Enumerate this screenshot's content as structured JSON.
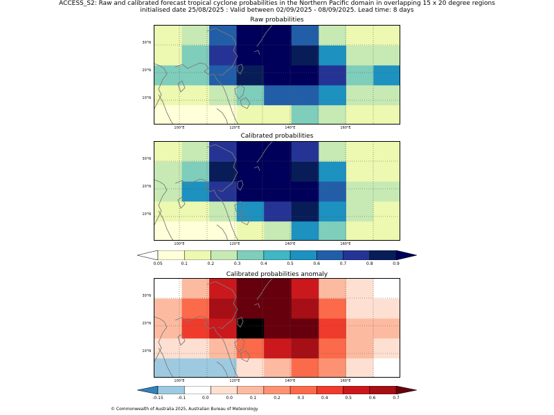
{
  "title_line1": "ACCESS_S2: Raw and calibrated forecast tropical cyclone probabilities in the Northern Pacific domain in overlapping 15 x 20 degree regions",
  "title_line2": "initialised date 25/08/2025 :  Valid between 02/09/2025 - 08/09/2025. Lead time: 8 days",
  "lat_labels": [
    "30°N",
    "20°N",
    "10°N"
  ],
  "lon_labels": [
    "100°E",
    "120°E",
    "140°E",
    "160°E"
  ],
  "panels": [
    {
      "title": "Raw probabilities",
      "scale": "prob",
      "grid": [
        [
          0.1,
          0.2,
          0.6,
          0.9,
          0.9,
          0.6,
          0.2,
          0.15,
          0.15
        ],
        [
          0.15,
          0.3,
          0.7,
          0.9,
          0.9,
          0.8,
          0.5,
          0.2,
          0.2
        ],
        [
          0.3,
          0.3,
          0.6,
          0.8,
          0.9,
          0.9,
          0.7,
          0.3,
          0.5
        ],
        [
          0.15,
          0.15,
          0.2,
          0.3,
          0.6,
          0.6,
          0.5,
          0.2,
          0.2
        ],
        [
          0.05,
          0.05,
          0.05,
          0.1,
          0.15,
          0.3,
          0.2,
          0.15,
          0.1
        ]
      ]
    },
    {
      "title": "Calibrated probabilities",
      "scale": "prob",
      "grid": [
        [
          0.1,
          0.2,
          0.7,
          0.95,
          0.95,
          0.7,
          0.2,
          0.15,
          0.1
        ],
        [
          0.2,
          0.3,
          0.8,
          0.95,
          0.95,
          0.8,
          0.5,
          0.15,
          0.15
        ],
        [
          0.2,
          0.5,
          0.7,
          0.9,
          0.95,
          0.95,
          0.6,
          0.2,
          0.2
        ],
        [
          0.15,
          0.15,
          0.2,
          0.5,
          0.7,
          0.8,
          0.5,
          0.2,
          0.15
        ],
        [
          0.05,
          0.05,
          0.05,
          0.1,
          0.2,
          0.5,
          0.3,
          0.15,
          0.1
        ]
      ]
    },
    {
      "title": "Calibrated probabilities anomaly",
      "scale": "anom",
      "grid": [
        [
          -0.1,
          0.05,
          0.45,
          0.75,
          0.75,
          0.45,
          0.05,
          0.0,
          -0.1
        ],
        [
          0.05,
          0.2,
          0.55,
          0.75,
          0.75,
          0.55,
          0.25,
          0.0,
          0.0
        ],
        [
          0.05,
          0.35,
          0.45,
          0.65,
          0.75,
          0.75,
          0.35,
          0.05,
          0.05
        ],
        [
          0.0,
          0.0,
          0.05,
          0.25,
          0.45,
          0.55,
          0.25,
          0.05,
          0.0
        ],
        [
          -0.15,
          -0.15,
          -0.15,
          0.0,
          0.05,
          0.25,
          0.15,
          0.0,
          -0.1
        ]
      ]
    }
  ],
  "prob_colorbar": {
    "ticks": [
      "0.05",
      "0.1",
      "0.2",
      "0.3",
      "0.4",
      "0.5",
      "0.6",
      "0.7",
      "0.8",
      "0.9"
    ],
    "colors": [
      "#ffffd9",
      "#edf8b1",
      "#c7e9b4",
      "#7fcdbb",
      "#41b6c4",
      "#1d91c0",
      "#225ea8",
      "#253494",
      "#081d58"
    ],
    "under": "#ffffff",
    "over": "#00005a"
  },
  "anom_colorbar": {
    "ticks": [
      "-0.15",
      "-0.1",
      "0.0",
      "0.0",
      "0.1",
      "0.2",
      "0.3",
      "0.4",
      "0.5",
      "0.6",
      "0.7"
    ],
    "colors": [
      "#9ecae1",
      "#ffffff",
      "#fee0d2",
      "#fcbba1",
      "#fc9272",
      "#fb6a4a",
      "#ef3b2c",
      "#cb181d",
      "#a50f15"
    ],
    "under": "#3182bd",
    "over": "#67000d"
  },
  "footer": "© Commonwealth of Australia 2025, Australian Bureau of Meteorology"
}
